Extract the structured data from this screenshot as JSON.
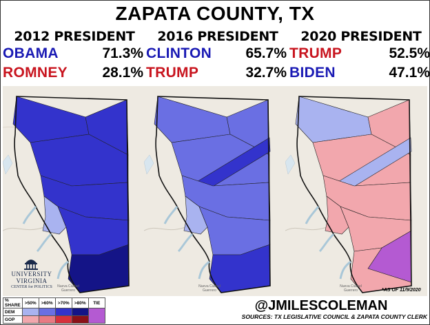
{
  "title": "ZAPATA COUNTY, TX",
  "columns": [
    {
      "heading": "2012 PRESIDENT",
      "rows": [
        {
          "name": "OBAMA",
          "pct": "71.3%",
          "color": "#1a1ab4"
        },
        {
          "name": "ROMNEY",
          "pct": "28.1%",
          "color": "#c8141e"
        }
      ]
    },
    {
      "heading": "2016 PRESIDENT",
      "rows": [
        {
          "name": "CLINTON",
          "pct": "65.7%",
          "color": "#1a1ab4"
        },
        {
          "name": "TRUMP",
          "pct": "32.7%",
          "color": "#c8141e"
        }
      ]
    },
    {
      "heading": "2020 PRESIDENT",
      "rows": [
        {
          "name": "TRUMP",
          "pct": "52.5%",
          "color": "#c8141e"
        },
        {
          "name": "BIDEN",
          "pct": "47.1%",
          "color": "#1a1ab4"
        }
      ]
    }
  ],
  "map_place_label": "Nueva Ciudad Guerrero",
  "as_of_note": "*AS OF 11/9/2020",
  "logo": {
    "line1": "UNIVERSITY",
    "line2": "VIRGINIA",
    "line3": "CENTER for POLITICS"
  },
  "legend": {
    "header": [
      "% SHARE",
      ">50%",
      ">60%",
      ">70%",
      ">80%",
      "TIE"
    ],
    "rows": [
      {
        "label": "DEM",
        "colors": [
          "#a9b3f0",
          "#6a6fe3",
          "#3333cc",
          "#141487"
        ]
      },
      {
        "label": "GOP",
        "colors": [
          "#f2a7ad",
          "#e87a83",
          "#d6313c",
          "#8b1118"
        ]
      }
    ],
    "tie_color": "#b45ad2"
  },
  "handle": "@JMILESCOLEMAN",
  "sources": "SOURCES: TX LEGISLATIVE COUNCIL & ZAPATA COUNTY CLERK"
}
